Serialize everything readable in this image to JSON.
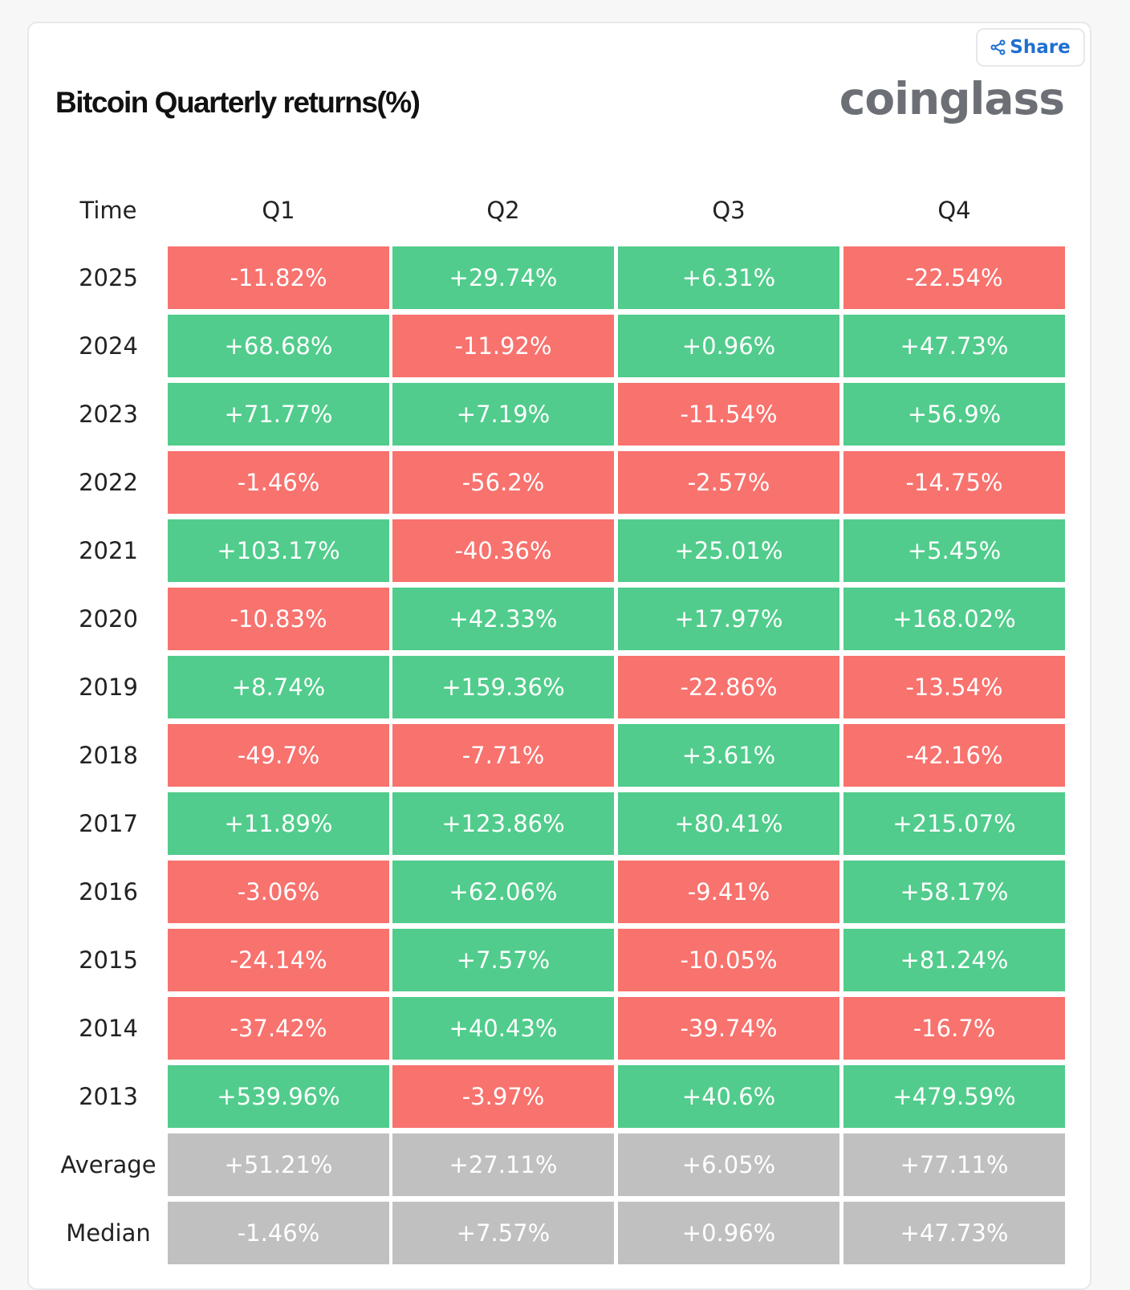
{
  "title": "Bitcoin Quarterly returns(%)",
  "share_label": "Share",
  "logo_text": "coinglass",
  "colors": {
    "positive": "#51cc8c",
    "negative": "#f8726e",
    "summary": "#c0c0c0",
    "share": "#1f6fd1"
  },
  "chart_data": {
    "type": "table",
    "columns": [
      "Time",
      "Q1",
      "Q2",
      "Q3",
      "Q4"
    ],
    "rows": [
      {
        "label": "2025",
        "values": [
          "-11.82%",
          "+29.74%",
          "+6.31%",
          "-22.54%"
        ]
      },
      {
        "label": "2024",
        "values": [
          "+68.68%",
          "-11.92%",
          "+0.96%",
          "+47.73%"
        ]
      },
      {
        "label": "2023",
        "values": [
          "+71.77%",
          "+7.19%",
          "-11.54%",
          "+56.9%"
        ]
      },
      {
        "label": "2022",
        "values": [
          "-1.46%",
          "-56.2%",
          "-2.57%",
          "-14.75%"
        ]
      },
      {
        "label": "2021",
        "values": [
          "+103.17%",
          "-40.36%",
          "+25.01%",
          "+5.45%"
        ]
      },
      {
        "label": "2020",
        "values": [
          "-10.83%",
          "+42.33%",
          "+17.97%",
          "+168.02%"
        ]
      },
      {
        "label": "2019",
        "values": [
          "+8.74%",
          "+159.36%",
          "-22.86%",
          "-13.54%"
        ]
      },
      {
        "label": "2018",
        "values": [
          "-49.7%",
          "-7.71%",
          "+3.61%",
          "-42.16%"
        ]
      },
      {
        "label": "2017",
        "values": [
          "+11.89%",
          "+123.86%",
          "+80.41%",
          "+215.07%"
        ]
      },
      {
        "label": "2016",
        "values": [
          "-3.06%",
          "+62.06%",
          "-9.41%",
          "+58.17%"
        ]
      },
      {
        "label": "2015",
        "values": [
          "-24.14%",
          "+7.57%",
          "-10.05%",
          "+81.24%"
        ]
      },
      {
        "label": "2014",
        "values": [
          "-37.42%",
          "+40.43%",
          "-39.74%",
          "-16.7%"
        ]
      },
      {
        "label": "2013",
        "values": [
          "+539.96%",
          "-3.97%",
          "+40.6%",
          "+479.59%"
        ]
      },
      {
        "label": "Average",
        "summary": true,
        "values": [
          "+51.21%",
          "+27.11%",
          "+6.05%",
          "+77.11%"
        ]
      },
      {
        "label": "Median",
        "summary": true,
        "values": [
          "-1.46%",
          "+7.57%",
          "+0.96%",
          "+47.73%"
        ]
      }
    ]
  }
}
